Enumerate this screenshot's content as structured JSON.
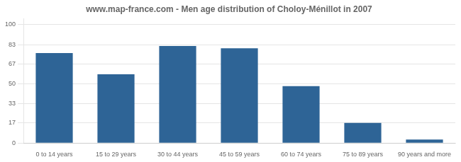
{
  "chart_data": {
    "type": "bar",
    "title": "www.map-france.com - Men age distribution of Choloy-Ménillot in 2007",
    "categories": [
      "0 to 14 years",
      "15 to 29 years",
      "30 to 44 years",
      "45 to 59 years",
      "60 to 74 years",
      "75 to 89 years",
      "90 years and more"
    ],
    "values": [
      76,
      58,
      82,
      80,
      48,
      17,
      3
    ],
    "color": "#2e6496",
    "ylim": [
      0,
      105
    ],
    "yticks": [
      0,
      17,
      33,
      50,
      67,
      83,
      100
    ],
    "grid": true
  }
}
